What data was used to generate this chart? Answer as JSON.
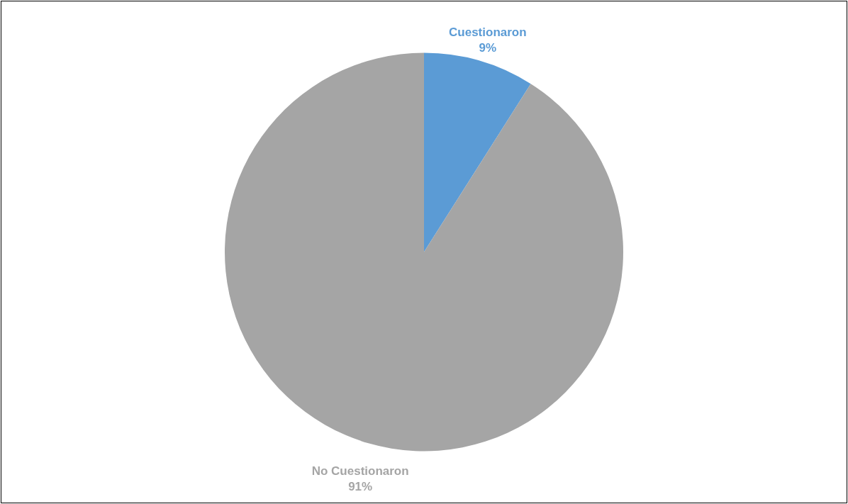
{
  "chart_data": {
    "type": "pie",
    "categories": [
      "Cuestionaron",
      "No Cuestionaron"
    ],
    "values": [
      9,
      91
    ],
    "colors": [
      "#5b9bd5",
      "#a5a5a5"
    ],
    "value_labels": [
      "9%",
      "91%"
    ]
  }
}
